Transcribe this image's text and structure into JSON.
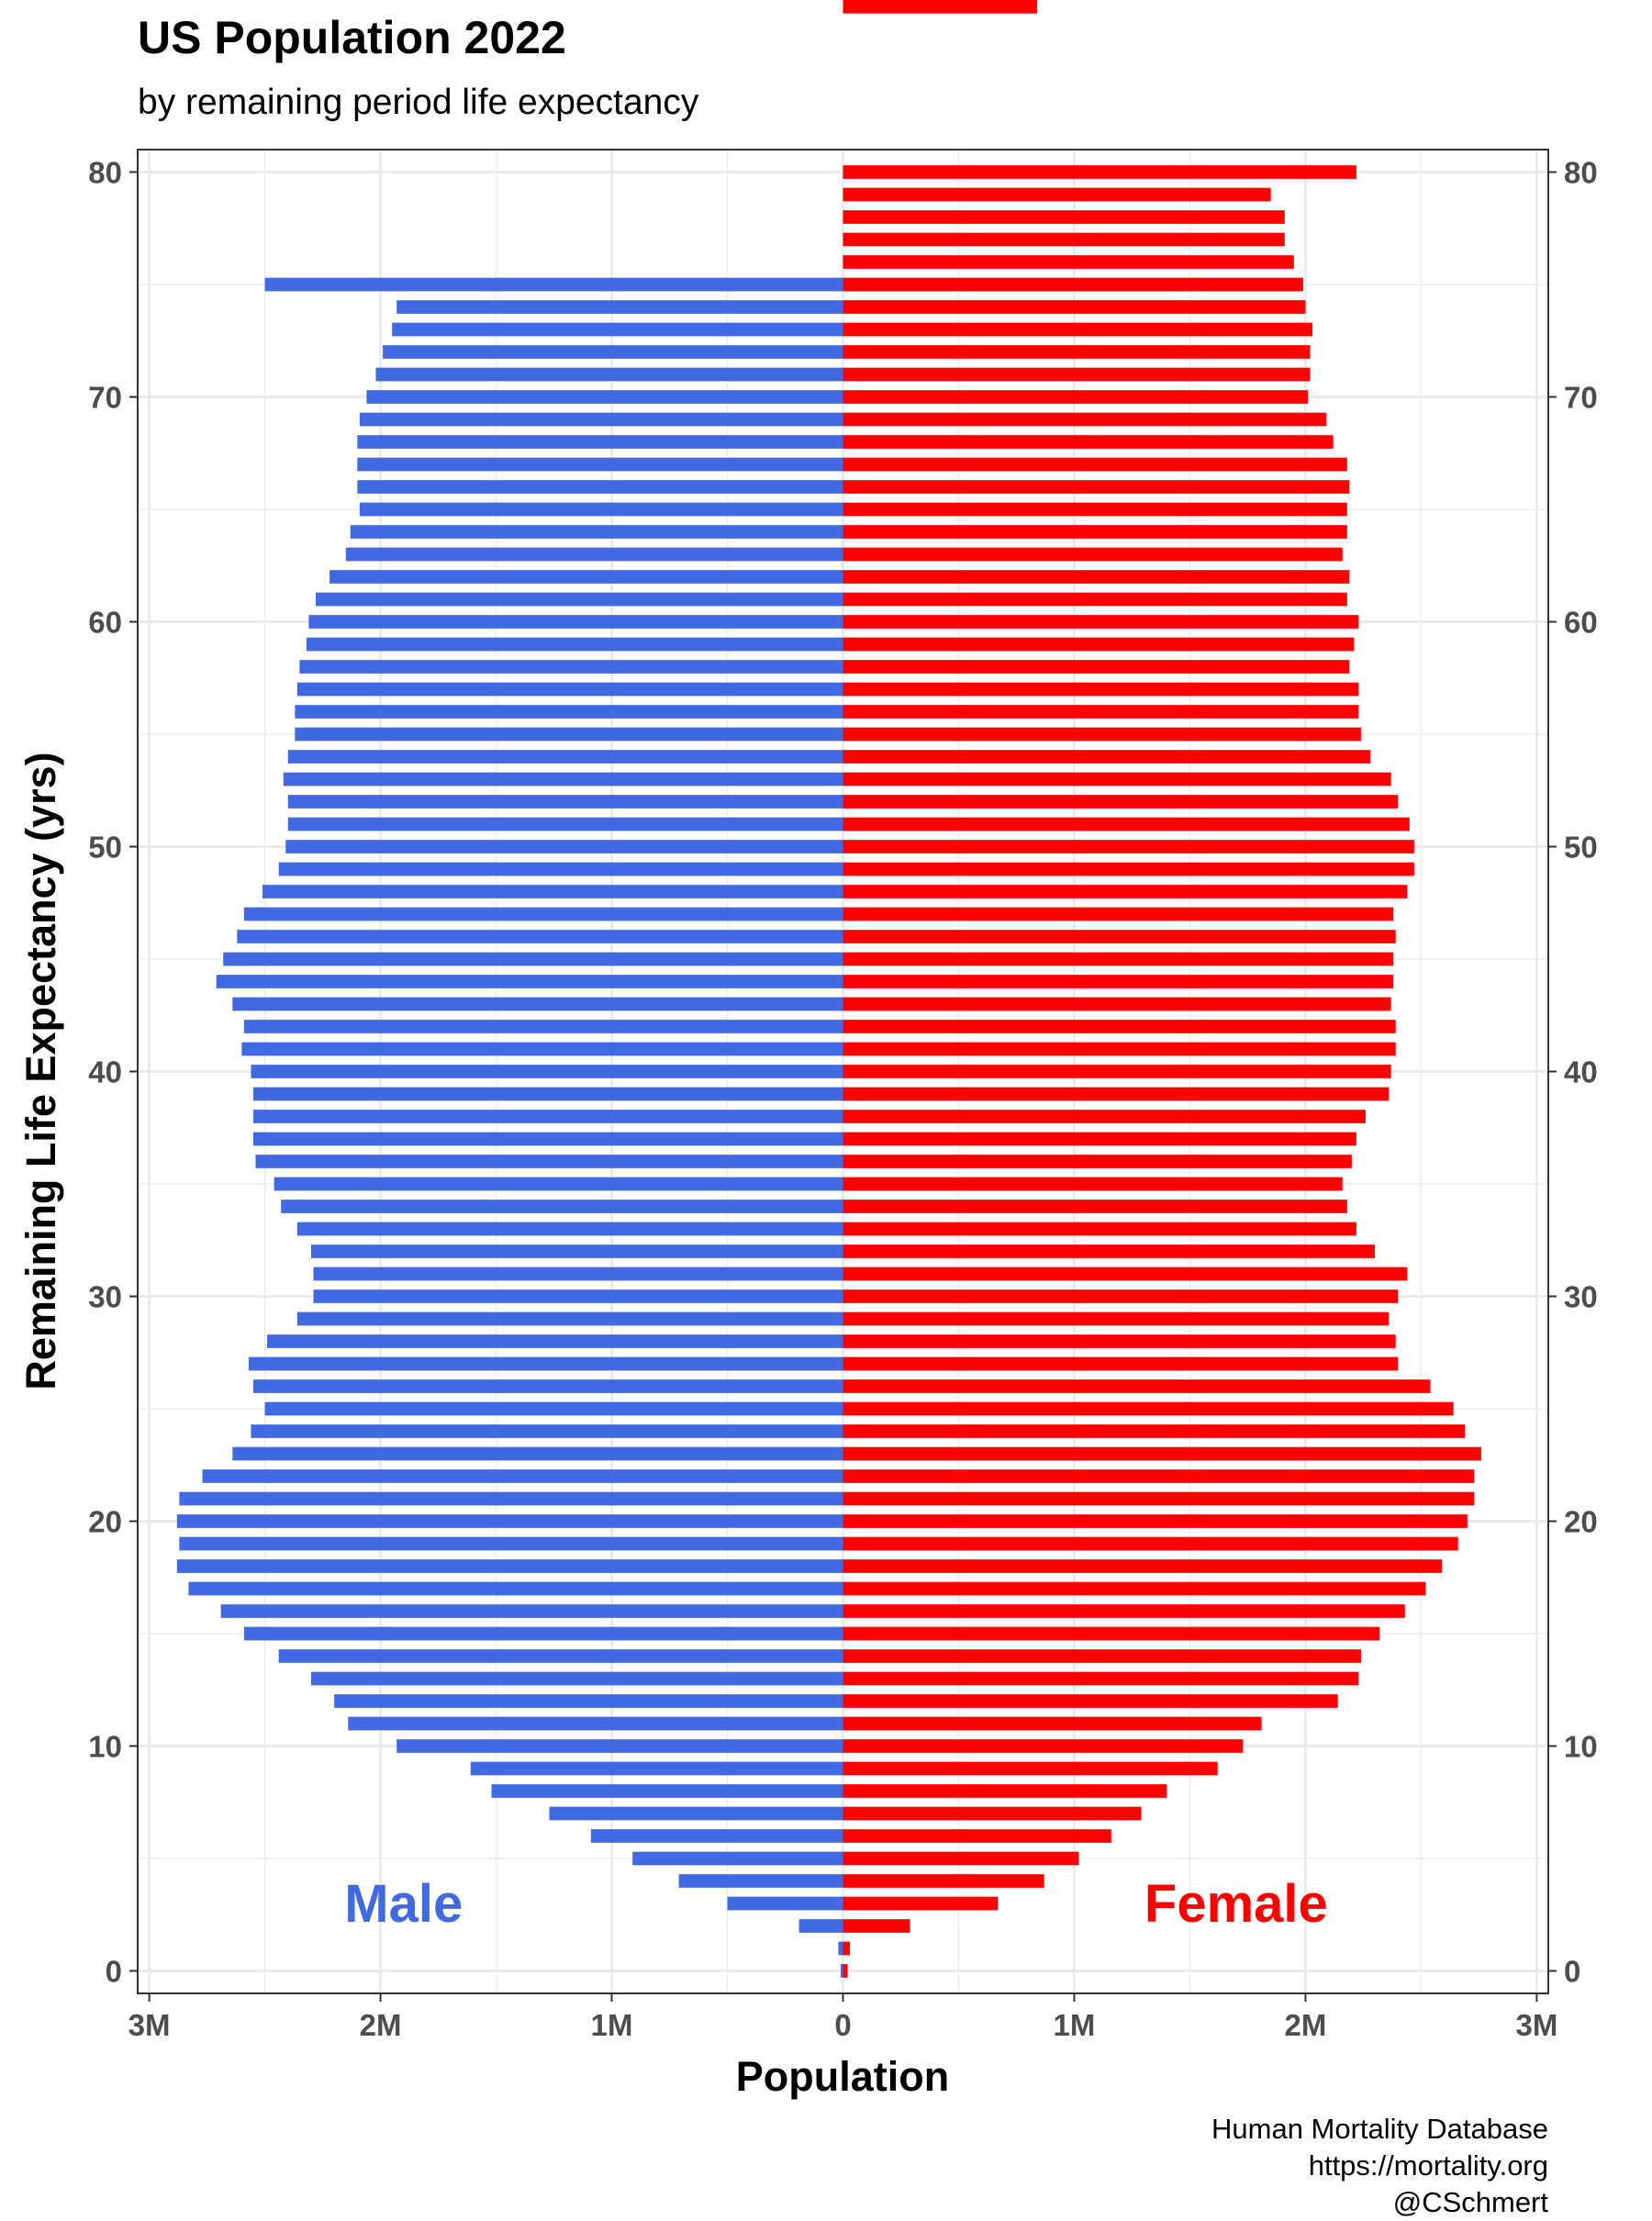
{
  "title": "US Population 2022",
  "subtitle": "by remaining period life expectancy",
  "caption": [
    "Human Mortality Database",
    "https://mortality.org",
    "@CSchmert"
  ],
  "colors": {
    "male": "#4169E1",
    "female": "#FF0000",
    "grid": "#EBEBEB",
    "axis": "#333333"
  },
  "chart_data": {
    "type": "bar",
    "orientation": "horizontal",
    "xlabel": "Population",
    "ylabel": "Remaining Life Expectancy (yrs)",
    "xlim": [
      -3050000,
      3050000
    ],
    "ylim": [
      -1,
      81
    ],
    "x_ticks": [
      -3000000,
      -2000000,
      -1000000,
      0,
      1000000,
      2000000,
      3000000
    ],
    "x_tick_labels": [
      "3M",
      "2M",
      "1M",
      "0",
      "1M",
      "2M",
      "3M"
    ],
    "y_ticks": [
      0,
      10,
      20,
      30,
      40,
      50,
      60,
      70,
      80
    ],
    "y_tick_labels": [
      "0",
      "10",
      "20",
      "30",
      "40",
      "50",
      "60",
      "70",
      "80"
    ],
    "secondary_y_axis": true,
    "grid": true,
    "annotations": [
      {
        "text": "Male",
        "series": "Male",
        "x": -1900000,
        "y": 3
      },
      {
        "text": "Female",
        "series": "Female",
        "x": 1700000,
        "y": 3
      }
    ],
    "y": [
      0,
      1,
      2,
      3,
      4,
      5,
      6,
      7,
      8,
      9,
      10,
      11,
      12,
      13,
      14,
      15,
      16,
      17,
      18,
      19,
      20,
      21,
      22,
      23,
      24,
      25,
      26,
      27,
      28,
      29,
      30,
      31,
      32,
      33,
      34,
      35,
      36,
      37,
      38,
      39,
      40,
      41,
      42,
      43,
      44,
      45,
      46,
      47,
      48,
      49,
      50,
      51,
      52,
      53,
      54,
      55,
      56,
      57,
      58,
      59,
      60,
      61,
      62,
      63,
      64,
      65,
      66,
      67,
      68,
      69,
      70,
      71,
      72,
      73,
      74,
      75,
      76,
      77,
      78,
      79,
      80
    ],
    "series": [
      {
        "name": "Male",
        "values": [
          -10000,
          -20000,
          -190000,
          -500000,
          -710000,
          -910000,
          -1090000,
          -1270000,
          -1520000,
          -1610000,
          -1930000,
          -2140000,
          -2200000,
          -2300000,
          -2440000,
          -2590000,
          -2690000,
          -2830000,
          -2880000,
          -2870000,
          -2880000,
          -2870000,
          -2770000,
          -2640000,
          -2560000,
          -2500000,
          -2550000,
          -2570000,
          -2490000,
          -2360000,
          -2290000,
          -2290000,
          -2300000,
          -2360000,
          -2430000,
          -2460000,
          -2540000,
          -2550000,
          -2550000,
          -2550000,
          -2560000,
          -2600000,
          -2590000,
          -2640000,
          -2710000,
          -2680000,
          -2620000,
          -2590000,
          -2510000,
          -2440000,
          -2410000,
          -2400000,
          -2400000,
          -2420000,
          -2400000,
          -2370000,
          -2370000,
          -2360000,
          -2350000,
          -2320000,
          -2310000,
          -2280000,
          -2220000,
          -2150000,
          -2130000,
          -2090000,
          -2100000,
          -2100000,
          -2100000,
          -2090000,
          -2060000,
          -2020000,
          -1990000,
          -1950000,
          -1930000,
          -2500000,
          0,
          0,
          0,
          0,
          0
        ]
      },
      {
        "name": "Female",
        "values": [
          20000,
          30000,
          290000,
          670000,
          870000,
          1020000,
          1160000,
          1290000,
          1400000,
          1620000,
          1730000,
          1810000,
          2140000,
          2230000,
          2240000,
          2320000,
          2430000,
          2520000,
          2590000,
          2660000,
          2700000,
          2730000,
          2730000,
          2760000,
          2690000,
          2640000,
          2540000,
          2400000,
          2390000,
          2360000,
          2400000,
          2440000,
          2300000,
          2220000,
          2180000,
          2160000,
          2200000,
          2220000,
          2260000,
          2360000,
          2370000,
          2390000,
          2390000,
          2370000,
          2380000,
          2380000,
          2390000,
          2380000,
          2440000,
          2470000,
          2470000,
          2450000,
          2400000,
          2370000,
          2280000,
          2240000,
          2230000,
          2230000,
          2190000,
          2210000,
          2230000,
          2180000,
          2190000,
          2160000,
          2180000,
          2180000,
          2190000,
          2180000,
          2120000,
          2090000,
          2010000,
          2020000,
          2020000,
          2030000,
          2000000,
          1990000,
          1950000,
          1910000,
          1910000,
          1850000,
          2220000,
          840000
        ]
      }
    ]
  }
}
